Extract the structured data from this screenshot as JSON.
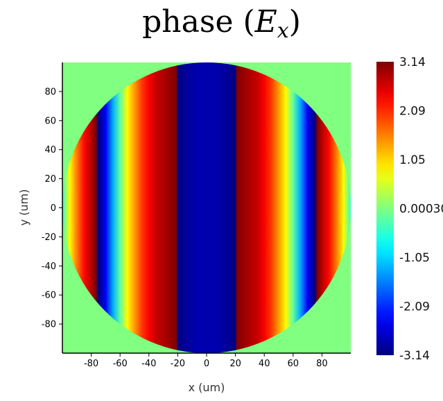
{
  "chart_data": {
    "type": "heatmap",
    "title": {
      "prefix": "phase (",
      "variable": "E",
      "subscript": "x",
      "suffix": ")"
    },
    "xlabel": "x (um)",
    "ylabel": "y (um)",
    "xlim": [
      -100,
      100
    ],
    "ylim": [
      -100,
      100
    ],
    "x_ticks": [
      -80,
      -60,
      -40,
      -20,
      0,
      20,
      40,
      60,
      80
    ],
    "y_ticks": [
      80,
      60,
      40,
      20,
      0,
      -20,
      -40,
      -60,
      -80
    ],
    "aperture": {
      "shape": "circle",
      "center": [
        0,
        0
      ],
      "radius": 100
    },
    "background_color": "#80FF80",
    "pattern": "phase varies with x only; vertical bands wrapping between -3.14 and 3.14",
    "phase_profile": {
      "x": [
        -100,
        -95,
        -90,
        -85,
        -80,
        -77,
        -75,
        -70,
        -65,
        -60,
        -55,
        -50,
        -45,
        -40,
        -35,
        -30,
        -25,
        -21,
        -20,
        -15,
        -10,
        -5,
        0,
        5,
        10,
        15,
        20,
        21,
        25,
        30,
        35,
        40,
        45,
        50,
        55,
        60,
        65,
        70,
        75,
        77,
        80,
        85,
        90,
        95,
        100
      ],
      "phase": [
        -0.5,
        0.8,
        1.6,
        2.3,
        2.8,
        3.14,
        -3.14,
        -2.4,
        -1.3,
        -0.2,
        0.8,
        1.4,
        2.0,
        2.4,
        2.7,
        2.85,
        3.0,
        3.14,
        -3.14,
        -3.0,
        -2.9,
        -2.85,
        -2.85,
        -2.85,
        -2.9,
        -3.0,
        -3.14,
        3.14,
        3.0,
        2.85,
        2.7,
        2.4,
        2.0,
        1.4,
        0.8,
        -0.2,
        -1.3,
        -2.4,
        -3.14,
        3.14,
        2.8,
        2.3,
        1.6,
        0.8,
        -0.5
      ]
    },
    "colorbar": {
      "min": -3.14,
      "max": 3.14,
      "colormap": "jet",
      "labels": [
        "3.14",
        "2.09",
        "1.05",
        "0.00030",
        "-1.05",
        "-2.09",
        "-3.14"
      ],
      "values": [
        3.14,
        2.09,
        1.05,
        0.0003,
        -1.05,
        -2.09,
        -3.14
      ]
    }
  }
}
